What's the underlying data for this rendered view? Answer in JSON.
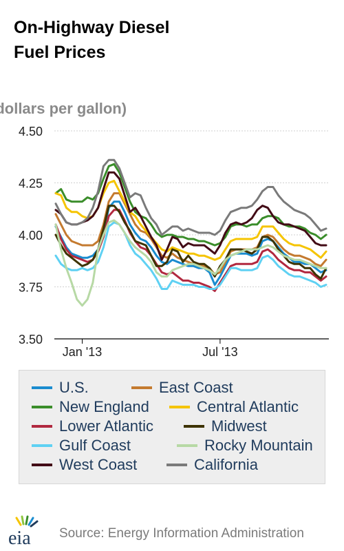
{
  "title": {
    "line1": "On-Highway Diesel",
    "line2": "Fuel Prices"
  },
  "source": "Source: Energy Information Administration",
  "logo_text": "eia",
  "chart_data": {
    "type": "line",
    "ylabel": "(dollars per gallon)",
    "ylim": [
      3.5,
      4.5
    ],
    "yticks": [
      "3.50",
      "3.75",
      "4.00",
      "4.25",
      "4.50"
    ],
    "xticks": [
      "Jan '13",
      "Jul '13"
    ],
    "xtick_index": [
      5,
      31
    ],
    "grid": true,
    "legend_position": "bottom",
    "x": [
      "2012-11-26",
      "2012-12-03",
      "2012-12-10",
      "2012-12-17",
      "2012-12-24",
      "2012-12-31",
      "2013-01-07",
      "2013-01-14",
      "2013-01-21",
      "2013-01-28",
      "2013-02-04",
      "2013-02-11",
      "2013-02-18",
      "2013-02-25",
      "2013-03-04",
      "2013-03-11",
      "2013-03-18",
      "2013-03-25",
      "2013-04-01",
      "2013-04-08",
      "2013-04-15",
      "2013-04-22",
      "2013-04-29",
      "2013-05-06",
      "2013-05-13",
      "2013-05-20",
      "2013-05-27",
      "2013-06-03",
      "2013-06-10",
      "2013-06-17",
      "2013-06-24",
      "2013-07-01",
      "2013-07-08",
      "2013-07-15",
      "2013-07-22",
      "2013-07-29",
      "2013-08-05",
      "2013-08-12",
      "2013-08-19",
      "2013-08-26",
      "2013-09-02",
      "2013-09-09",
      "2013-09-16",
      "2013-09-23",
      "2013-09-30",
      "2013-10-07",
      "2013-10-14",
      "2013-10-21",
      "2013-10-28",
      "2013-11-04",
      "2013-11-11",
      "2013-11-18"
    ],
    "series": [
      {
        "name": "U.S.",
        "color": "#1a8ccf",
        "values": [
          4.04,
          3.99,
          3.94,
          3.91,
          3.9,
          3.89,
          3.89,
          3.9,
          3.93,
          4.0,
          4.13,
          4.16,
          4.16,
          4.11,
          4.05,
          4.01,
          3.98,
          3.97,
          3.94,
          3.9,
          3.87,
          3.86,
          3.88,
          3.87,
          3.86,
          3.85,
          3.85,
          3.84,
          3.84,
          3.82,
          3.76,
          3.8,
          3.85,
          3.9,
          3.91,
          3.91,
          3.91,
          3.9,
          3.91,
          3.97,
          3.98,
          3.97,
          3.94,
          3.91,
          3.89,
          3.87,
          3.87,
          3.86,
          3.86,
          3.84,
          3.82,
          3.83
        ]
      },
      {
        "name": "East Coast",
        "color": "#c47a2f",
        "values": [
          4.1,
          4.05,
          4.0,
          3.97,
          3.96,
          3.95,
          3.95,
          3.95,
          3.97,
          4.05,
          4.16,
          4.2,
          4.2,
          4.15,
          4.1,
          4.05,
          4.02,
          4.01,
          3.98,
          3.94,
          3.9,
          3.89,
          3.91,
          3.89,
          3.88,
          3.87,
          3.86,
          3.86,
          3.85,
          3.84,
          3.81,
          3.82,
          3.87,
          3.92,
          3.93,
          3.93,
          3.93,
          3.93,
          3.94,
          3.99,
          4.0,
          3.99,
          3.96,
          3.93,
          3.91,
          3.9,
          3.9,
          3.89,
          3.88,
          3.86,
          3.85,
          3.88
        ]
      },
      {
        "name": "New England",
        "color": "#3a8d2a",
        "values": [
          4.2,
          4.22,
          4.17,
          4.16,
          4.16,
          4.16,
          4.18,
          4.17,
          4.2,
          4.27,
          4.33,
          4.34,
          4.3,
          4.23,
          4.16,
          4.11,
          4.09,
          4.08,
          4.05,
          4.01,
          3.99,
          4.0,
          4.0,
          3.99,
          3.99,
          3.98,
          3.98,
          3.97,
          3.97,
          3.96,
          3.95,
          3.96,
          3.99,
          4.04,
          4.05,
          4.05,
          4.04,
          4.05,
          4.05,
          4.08,
          4.09,
          4.09,
          4.08,
          4.05,
          4.04,
          4.04,
          4.04,
          4.03,
          4.01,
          4.0,
          3.98,
          4.0
        ]
      },
      {
        "name": "Central Atlantic",
        "color": "#f5c400",
        "values": [
          4.2,
          4.19,
          4.13,
          4.11,
          4.11,
          4.09,
          4.08,
          4.09,
          4.13,
          4.2,
          4.25,
          4.26,
          4.21,
          4.16,
          4.11,
          4.09,
          4.05,
          4.02,
          3.99,
          3.96,
          3.93,
          3.92,
          3.94,
          3.93,
          3.92,
          3.91,
          3.91,
          3.9,
          3.9,
          3.89,
          3.88,
          3.89,
          3.93,
          3.97,
          3.98,
          3.98,
          3.98,
          3.98,
          3.99,
          4.04,
          4.04,
          4.04,
          4.01,
          3.98,
          3.96,
          3.95,
          3.95,
          3.94,
          3.93,
          3.91,
          3.89,
          3.92
        ]
      },
      {
        "name": "Lower Atlantic",
        "color": "#b1283f",
        "values": [
          4.05,
          3.98,
          3.93,
          3.9,
          3.89,
          3.88,
          3.87,
          3.88,
          3.92,
          3.99,
          4.09,
          4.12,
          4.12,
          4.07,
          4.01,
          3.97,
          3.94,
          3.93,
          3.9,
          3.86,
          3.82,
          3.81,
          3.82,
          3.8,
          3.78,
          3.78,
          3.77,
          3.77,
          3.76,
          3.75,
          3.73,
          3.77,
          3.81,
          3.85,
          3.86,
          3.86,
          3.86,
          3.86,
          3.87,
          3.92,
          3.93,
          3.91,
          3.88,
          3.86,
          3.84,
          3.83,
          3.83,
          3.82,
          3.82,
          3.8,
          3.78,
          3.8
        ]
      },
      {
        "name": "Midwest",
        "color": "#3d3300",
        "values": [
          4.0,
          3.95,
          3.91,
          3.89,
          3.87,
          3.85,
          3.86,
          3.88,
          3.93,
          4.03,
          4.14,
          4.14,
          4.11,
          4.06,
          4.02,
          3.97,
          3.96,
          3.95,
          3.9,
          3.85,
          3.85,
          3.87,
          3.93,
          3.92,
          3.87,
          3.9,
          3.87,
          3.86,
          3.86,
          3.84,
          3.8,
          3.85,
          3.88,
          3.93,
          3.93,
          3.93,
          3.92,
          3.91,
          3.93,
          3.99,
          3.99,
          3.97,
          3.93,
          3.9,
          3.87,
          3.86,
          3.86,
          3.84,
          3.84,
          3.81,
          3.79,
          3.84
        ]
      },
      {
        "name": "Gulf Coast",
        "color": "#5fd1f3",
        "values": [
          3.9,
          3.86,
          3.84,
          3.83,
          3.83,
          3.84,
          3.83,
          3.84,
          3.87,
          3.94,
          4.04,
          4.06,
          4.05,
          4.01,
          3.95,
          3.91,
          3.89,
          3.86,
          3.83,
          3.79,
          3.74,
          3.74,
          3.78,
          3.77,
          3.76,
          3.76,
          3.76,
          3.75,
          3.75,
          3.74,
          3.74,
          3.76,
          3.8,
          3.84,
          3.84,
          3.83,
          3.83,
          3.83,
          3.84,
          3.89,
          3.9,
          3.88,
          3.85,
          3.83,
          3.81,
          3.8,
          3.8,
          3.79,
          3.78,
          3.77,
          3.75,
          3.76
        ]
      },
      {
        "name": "Rocky Mountain",
        "color": "#b7d9a5",
        "values": [
          4.05,
          3.93,
          3.84,
          3.77,
          3.69,
          3.66,
          3.69,
          3.77,
          3.93,
          4.0,
          4.06,
          4.07,
          4.05,
          4.01,
          3.97,
          3.94,
          3.92,
          3.9,
          3.87,
          3.82,
          3.8,
          3.8,
          3.83,
          3.84,
          3.85,
          3.86,
          3.86,
          3.85,
          3.84,
          3.83,
          3.81,
          3.84,
          3.88,
          3.9,
          3.91,
          3.92,
          3.93,
          3.93,
          3.93,
          3.94,
          3.95,
          3.94,
          3.92,
          3.9,
          3.89,
          3.88,
          3.88,
          3.87,
          3.86,
          3.85,
          3.84,
          3.84
        ]
      },
      {
        "name": "West Coast",
        "color": "#420b16",
        "values": [
          4.12,
          4.1,
          4.06,
          4.05,
          4.05,
          4.06,
          4.07,
          4.09,
          4.13,
          4.22,
          4.3,
          4.3,
          4.27,
          4.19,
          4.11,
          4.13,
          4.09,
          4.04,
          3.99,
          3.95,
          3.88,
          3.93,
          3.99,
          3.98,
          3.94,
          3.96,
          3.95,
          3.95,
          3.95,
          3.93,
          3.91,
          3.95,
          4.01,
          4.05,
          4.06,
          4.05,
          4.06,
          4.08,
          4.12,
          4.14,
          4.13,
          4.09,
          4.06,
          4.05,
          4.05,
          4.04,
          4.03,
          4.02,
          3.99,
          3.96,
          3.95,
          3.95
        ]
      },
      {
        "name": "California",
        "color": "#7a7a7a",
        "values": [
          4.15,
          4.1,
          4.06,
          4.05,
          4.05,
          4.06,
          4.08,
          4.13,
          4.21,
          4.33,
          4.36,
          4.36,
          4.32,
          4.25,
          4.18,
          4.2,
          4.19,
          4.13,
          4.08,
          4.05,
          4.0,
          4.02,
          4.04,
          4.04,
          4.02,
          4.03,
          4.02,
          4.01,
          4.01,
          4.01,
          4.0,
          4.02,
          4.07,
          4.11,
          4.12,
          4.13,
          4.13,
          4.14,
          4.17,
          4.21,
          4.23,
          4.23,
          4.19,
          4.16,
          4.14,
          4.12,
          4.11,
          4.1,
          4.08,
          4.05,
          4.02,
          4.03
        ]
      }
    ]
  }
}
